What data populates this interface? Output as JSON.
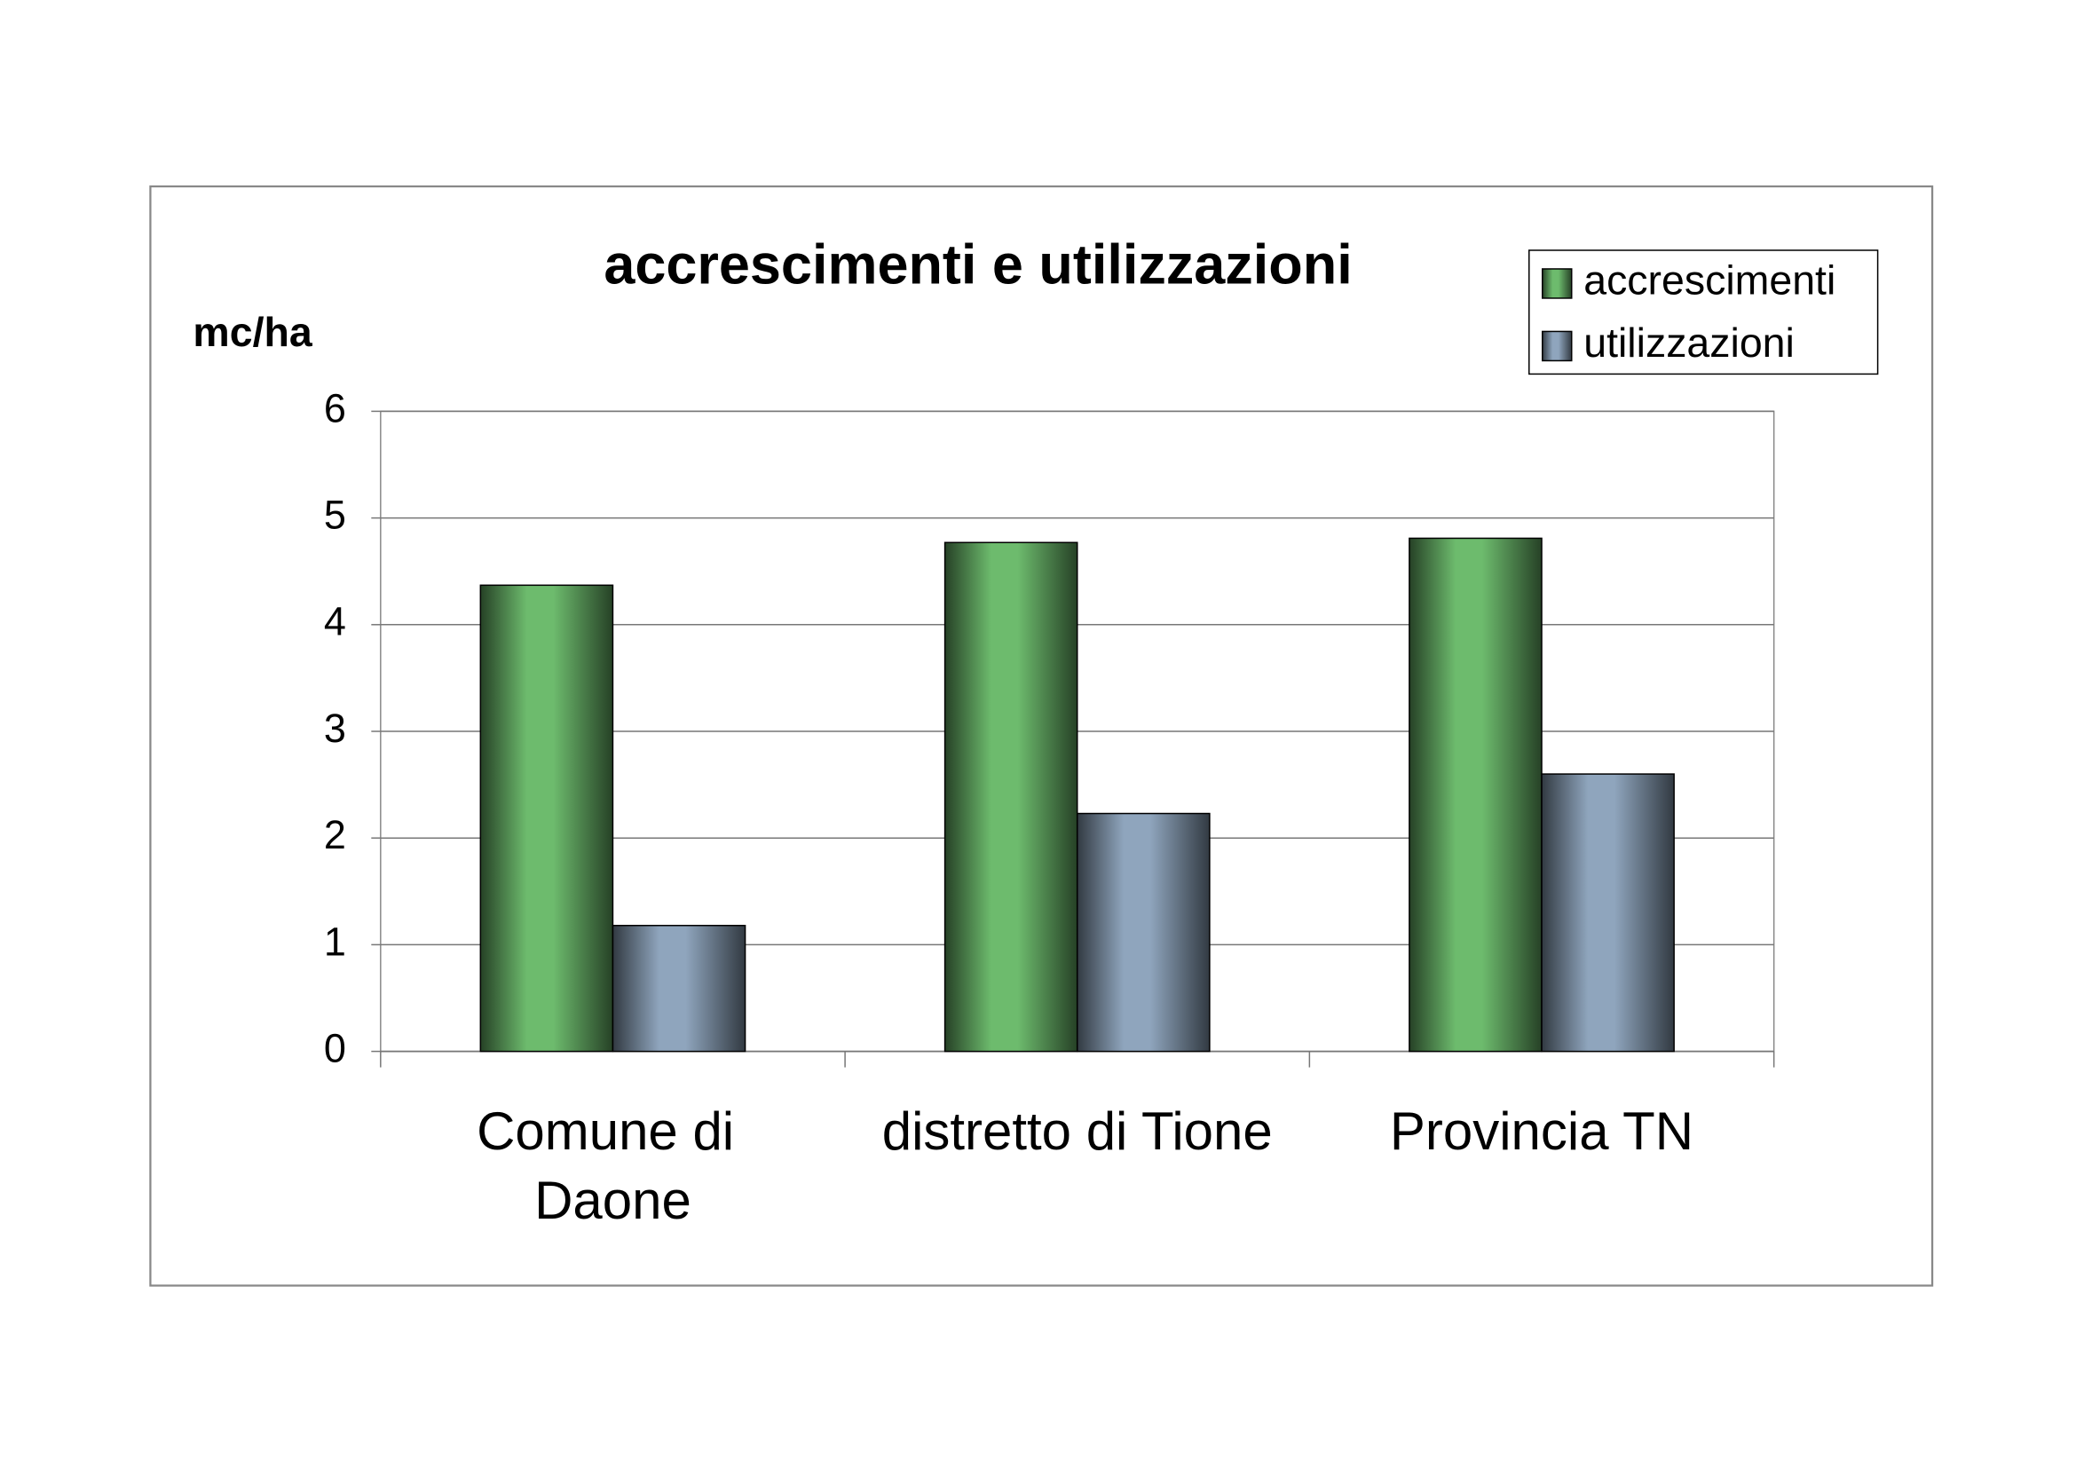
{
  "chart_data": {
    "type": "bar",
    "title": "accrescimenti e utilizzazioni",
    "y_label": "mc/ha",
    "categories": [
      "Comune di\nDaone",
      "distretto di Tione",
      "Provincia TN"
    ],
    "series": [
      {
        "name": "accrescimenti",
        "color": "#6dbb6d",
        "values": [
          4.37,
          4.77,
          4.81
        ]
      },
      {
        "name": "utilizzazioni",
        "color": "#8fa5bd",
        "values": [
          1.18,
          2.23,
          2.6
        ]
      }
    ],
    "ylim": [
      0,
      6
    ],
    "yticks": [
      0,
      1,
      2,
      3,
      4,
      5,
      6
    ],
    "grid": true,
    "legend": "top-right"
  }
}
